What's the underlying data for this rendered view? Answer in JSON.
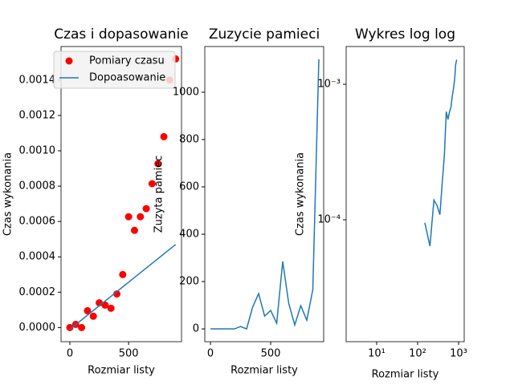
{
  "chart_data": [
    {
      "type": "scatter",
      "title": "Czas i dopasowanie",
      "xlabel": "Rozmiar listy",
      "ylabel": "Czas wykonania",
      "xlim": [
        -75,
        950
      ],
      "ylim": [
        -8e-05,
        0.00159
      ],
      "xticks": [
        0,
        500
      ],
      "yticks": [
        {
          "value": 0,
          "label": "0.0000"
        },
        {
          "value": 0.0002,
          "label": "0.0002"
        },
        {
          "value": 0.0004,
          "label": "0.0004"
        },
        {
          "value": 0.0006,
          "label": "0.0006"
        },
        {
          "value": 0.0008,
          "label": "0.0008"
        },
        {
          "value": 0.001,
          "label": "0.0010"
        },
        {
          "value": 0.0012,
          "label": "0.0012"
        },
        {
          "value": 0.0014,
          "label": "0.0014"
        }
      ],
      "legend": "upper left",
      "series": [
        {
          "name": "Pomiary czasu",
          "type": "scatter",
          "color": "#ff0000",
          "x": [
            0,
            50,
            100,
            150,
            200,
            250,
            300,
            350,
            400,
            450,
            500,
            550,
            600,
            650,
            700,
            750,
            800,
            850,
            900
          ],
          "values": [
            0,
            1.8e-05,
            0,
            9.5e-05,
            6.4e-05,
            0.00014,
            0.000127,
            0.000109,
            0.00019,
            0.0003,
            0.000627,
            0.00055,
            0.000627,
            0.000673,
            0.000814,
            0.000927,
            0.00108,
            0.0014,
            0.00152
          ]
        },
        {
          "name": "Dopoasowanie",
          "type": "line",
          "color": "#1f77b4",
          "x": [
            0,
            900
          ],
          "values": [
            -1e-05,
            0.00047
          ]
        }
      ]
    },
    {
      "type": "line",
      "title": "Zuzycie pamieci",
      "xlabel": "Rozmiar listy",
      "ylabel": "Zuzyta pamiec",
      "xlim": [
        -47,
        940
      ],
      "ylim": [
        -54,
        1193
      ],
      "xticks": [
        0,
        500
      ],
      "yticks": [
        0,
        200,
        400,
        600,
        800,
        1000
      ],
      "color": "#1f77b4",
      "x": [
        0,
        50,
        100,
        150,
        200,
        250,
        300,
        350,
        400,
        450,
        500,
        550,
        600,
        650,
        700,
        750,
        800,
        850,
        900
      ],
      "values": [
        0,
        0,
        0,
        0,
        0,
        10,
        0,
        92,
        149,
        54,
        78,
        24,
        285,
        108,
        17,
        98,
        37,
        166,
        1139
      ]
    },
    {
      "type": "line",
      "title": "Wykres log log",
      "xlabel": "Rozmiar listy",
      "ylabel": "Czas wykonania",
      "xscale": "log",
      "yscale": "log",
      "xlim": [
        1.8,
        1372
      ],
      "ylim": [
        1.26e-05,
        0.0019
      ],
      "xticks": [
        {
          "value": 10,
          "label": "10¹"
        },
        {
          "value": 100,
          "label": "10²"
        },
        {
          "value": 1000,
          "label": "10³"
        }
      ],
      "yticks": [
        {
          "value": 0.0001,
          "label": "10⁻⁴"
        },
        {
          "value": 0.001,
          "label": "10⁻³"
        }
      ],
      "color": "#1f77b4",
      "x": [
        50,
        100,
        150,
        200,
        250,
        300,
        350,
        400,
        450,
        500,
        550,
        600,
        650,
        700,
        750,
        800,
        850,
        900
      ],
      "values": [
        1.8e-05,
        null,
        9.5e-05,
        6.4e-05,
        0.00014,
        0.000127,
        0.000109,
        0.00019,
        0.0003,
        0.000627,
        0.00055,
        0.000627,
        0.000673,
        0.000814,
        0.000927,
        0.00108,
        0.0014,
        0.00152
      ]
    }
  ]
}
